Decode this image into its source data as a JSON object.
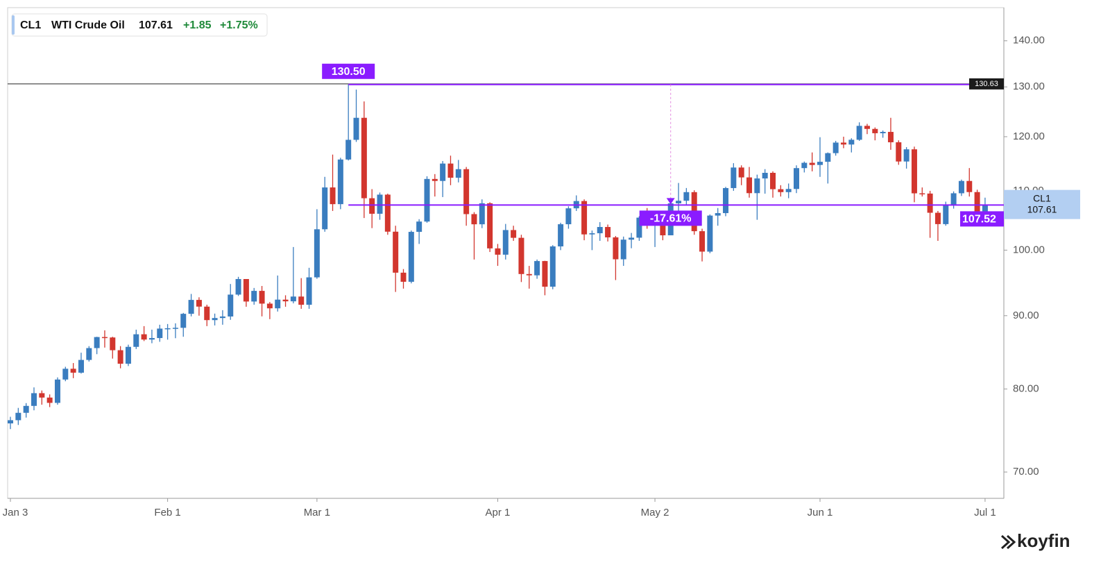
{
  "header": {
    "ticker": "CL1",
    "name": "WTI Crude Oil",
    "change": "+1.85",
    "change_pct": "+1.75%"
  },
  "logo": "koyfin",
  "chart_data": {
    "type": "candlestick",
    "log_scale": true,
    "up_color": "#3a7dbf",
    "down_color": "#d2362e",
    "annotation_color": "#8a1cff",
    "categories": [
      "Jan 3",
      null,
      null,
      null,
      null,
      null,
      null,
      null,
      null,
      null,
      null,
      null,
      null,
      null,
      null,
      null,
      null,
      null,
      null,
      null,
      "Feb 1",
      null,
      null,
      null,
      null,
      null,
      null,
      null,
      null,
      null,
      null,
      null,
      null,
      null,
      null,
      null,
      null,
      null,
      null,
      "Mar 1",
      null,
      null,
      null,
      null,
      null,
      null,
      null,
      null,
      null,
      null,
      null,
      null,
      null,
      null,
      null,
      null,
      null,
      null,
      null,
      null,
      null,
      null,
      "Apr 1",
      null,
      null,
      null,
      null,
      null,
      null,
      null,
      null,
      null,
      null,
      null,
      null,
      null,
      null,
      null,
      null,
      null,
      null,
      null,
      "May 2",
      null,
      null,
      null,
      null,
      null,
      null,
      null,
      null,
      null,
      null,
      null,
      null,
      null,
      null,
      null,
      null,
      null,
      null,
      null,
      null,
      "Jun 1",
      null,
      null,
      null,
      null,
      null,
      null,
      null,
      null,
      null,
      null,
      null,
      null,
      null,
      null,
      null,
      null,
      null,
      null,
      null,
      null,
      "Jul 1"
    ],
    "open": [
      75.69,
      76.08,
      76.99,
      77.85,
      79.46,
      78.9,
      78.23,
      81.22,
      82.64,
      82.12,
      83.82,
      85.43,
      86.96,
      86.9,
      85.14,
      83.31,
      85.6,
      87.35,
      86.61,
      86.82,
      88.15,
      88.2,
      88.26,
      90.27,
      92.31,
      91.32,
      89.36,
      89.66,
      89.88,
      93.1,
      95.46,
      92.07,
      93.66,
      91.76,
      91.07,
      92.35,
      92.1,
      92.81,
      91.59,
      95.72,
      103.41,
      110.6,
      107.67,
      115.68,
      119.4,
      123.7,
      108.7,
      106.02,
      109.33,
      103.01,
      96.44,
      95.04,
      102.98,
      104.7,
      112.12,
      111.76,
      114.93,
      112.34,
      113.9,
      105.96,
      104.24,
      107.82,
      100.28,
      99.27,
      103.28,
      102.0,
      96.23,
      96.03,
      98.26,
      94.29,
      100.6,
      104.25,
      106.95,
      108.21,
      102.56,
      102.75,
      103.79,
      102.07,
      98.54,
      101.7,
      102.02,
      105.36,
      104.69,
      105.17,
      102.41,
      107.81,
      108.26,
      109.77,
      103.09,
      99.76,
      105.71,
      106.13,
      110.49,
      114.2,
      112.4,
      109.59,
      112.21,
      113.23,
      110.29,
      109.77,
      110.33,
      114.09,
      115.07,
      114.67,
      115.26,
      116.87,
      118.87,
      118.5,
      119.41,
      122.11,
      121.51,
      120.67,
      120.93,
      118.93,
      115.31,
      117.59,
      109.56,
      109.52,
      106.19,
      104.27,
      107.62,
      109.57,
      111.76,
      109.78,
      105.76
    ],
    "high": [
      76.5,
      77.6,
      78.2,
      80.2,
      79.8,
      79.3,
      81.5,
      82.9,
      83.4,
      84.8,
      85.7,
      87.0,
      87.9,
      87.0,
      85.7,
      85.9,
      88.0,
      88.5,
      88.0,
      88.7,
      88.8,
      88.9,
      90.4,
      93.2,
      92.7,
      91.6,
      90.3,
      90.8,
      94.7,
      95.8,
      95.0,
      94.1,
      94.4,
      92.0,
      96.0,
      93.0,
      100.5,
      95.6,
      97.2,
      106.8,
      112.5,
      116.6,
      116.0,
      130.5,
      129.44,
      127.0,
      110.3,
      109.7,
      109.5,
      104.0,
      97.0,
      103.2,
      105.1,
      112.6,
      113.0,
      115.4,
      116.4,
      115.6,
      114.3,
      106.3,
      108.5,
      108.0,
      101.0,
      104.3,
      104.0,
      102.5,
      97.5,
      98.5,
      98.3,
      100.8,
      104.5,
      107.3,
      109.2,
      108.5,
      103.2,
      104.6,
      104.2,
      102.3,
      102.2,
      102.8,
      105.6,
      107.0,
      105.7,
      105.5,
      108.0,
      111.4,
      110.5,
      110.1,
      103.5,
      105.9,
      107.0,
      110.7,
      115.0,
      114.6,
      114.3,
      112.9,
      113.9,
      113.5,
      111.0,
      111.3,
      114.6,
      115.3,
      117.0,
      119.9,
      117.0,
      119.2,
      120.0,
      119.7,
      122.8,
      122.5,
      121.8,
      121.2,
      123.7,
      119.3,
      118.0,
      118.1,
      110.6,
      110.0,
      106.5,
      108.1,
      109.9,
      112.0,
      114.1,
      110.2,
      108.8
    ],
    "low": [
      75.0,
      75.5,
      76.4,
      77.3,
      78.0,
      77.7,
      78.0,
      81.0,
      81.4,
      82.0,
      83.6,
      84.6,
      85.5,
      84.0,
      82.7,
      83.0,
      85.3,
      86.4,
      86.1,
      86.3,
      86.6,
      86.8,
      87.0,
      89.9,
      90.0,
      88.5,
      88.6,
      88.7,
      89.4,
      92.9,
      91.3,
      91.6,
      89.9,
      89.5,
      90.6,
      91.3,
      91.8,
      91.0,
      91.0,
      95.5,
      103.0,
      106.5,
      106.8,
      115.5,
      119.0,
      105.3,
      103.6,
      105.0,
      102.5,
      93.5,
      94.0,
      94.8,
      101.0,
      104.5,
      109.0,
      108.9,
      111.0,
      111.5,
      104.0,
      98.5,
      103.6,
      99.7,
      97.5,
      98.5,
      101.5,
      95.0,
      94.0,
      95.5,
      93.0,
      93.9,
      100.0,
      103.5,
      106.5,
      101.6,
      100.0,
      101.5,
      101.4,
      95.3,
      97.5,
      100.3,
      101.5,
      103.5,
      100.5,
      101.6,
      102.5,
      106.5,
      107.5,
      102.5,
      98.2,
      99.5,
      104.0,
      105.6,
      110.0,
      111.0,
      108.8,
      105.0,
      109.5,
      108.8,
      109.0,
      108.7,
      109.6,
      113.3,
      113.5,
      112.5,
      111.3,
      116.4,
      117.8,
      117.0,
      119.2,
      120.5,
      119.3,
      119.8,
      117.5,
      114.7,
      114.0,
      108.0,
      109.0,
      102.0,
      101.5,
      104.0,
      106.9,
      109.1,
      109.0,
      105.0,
      105.4
    ],
    "close": [
      76.08,
      76.99,
      77.85,
      79.46,
      78.9,
      78.23,
      81.22,
      82.64,
      82.12,
      83.82,
      85.43,
      86.96,
      86.9,
      85.14,
      83.31,
      85.6,
      87.35,
      86.61,
      86.82,
      88.15,
      88.2,
      88.26,
      90.27,
      92.31,
      91.32,
      89.36,
      89.66,
      89.88,
      93.1,
      95.46,
      92.07,
      93.66,
      91.76,
      91.07,
      92.35,
      92.1,
      92.81,
      91.59,
      95.72,
      103.41,
      110.6,
      107.67,
      115.68,
      119.4,
      123.7,
      108.7,
      106.02,
      109.33,
      103.01,
      96.44,
      95.04,
      102.98,
      104.7,
      112.12,
      111.76,
      114.93,
      112.34,
      113.9,
      105.96,
      104.24,
      107.82,
      100.28,
      99.27,
      103.28,
      102.0,
      96.23,
      96.03,
      98.26,
      94.29,
      100.6,
      104.25,
      106.95,
      108.21,
      102.56,
      102.75,
      103.79,
      102.07,
      98.54,
      101.7,
      102.02,
      105.36,
      104.69,
      105.17,
      102.41,
      107.81,
      108.26,
      109.77,
      103.09,
      99.76,
      105.71,
      106.13,
      110.49,
      114.2,
      112.4,
      109.59,
      112.21,
      113.23,
      110.29,
      109.77,
      110.33,
      114.09,
      115.07,
      114.67,
      115.26,
      116.87,
      118.87,
      118.5,
      119.41,
      122.11,
      121.51,
      120.67,
      120.93,
      118.93,
      115.31,
      117.59,
      109.56,
      109.52,
      106.19,
      104.27,
      107.62,
      109.57,
      111.76,
      109.78,
      105.76,
      107.61
    ],
    "ylim": [
      67.1,
      147.5
    ],
    "yticks": [
      {
        "value": 70,
        "label": "70.00"
      },
      {
        "value": 80,
        "label": "80.00"
      },
      {
        "value": 90,
        "label": "90.00"
      },
      {
        "value": 100,
        "label": "100.00"
      },
      {
        "value": 110,
        "label": "110.00"
      },
      {
        "value": 120,
        "label": "120.00"
      },
      {
        "value": 130,
        "label": "130.00"
      },
      {
        "value": 140,
        "label": "140.00"
      }
    ],
    "last_price": 107.61,
    "peak": {
      "value": 130.5,
      "label": "130.50"
    },
    "level": 107.52,
    "drawdown": {
      "value": -17.61,
      "label": "-17.61%"
    },
    "crosshair": {
      "value": 130.63,
      "label": "130.63"
    }
  }
}
